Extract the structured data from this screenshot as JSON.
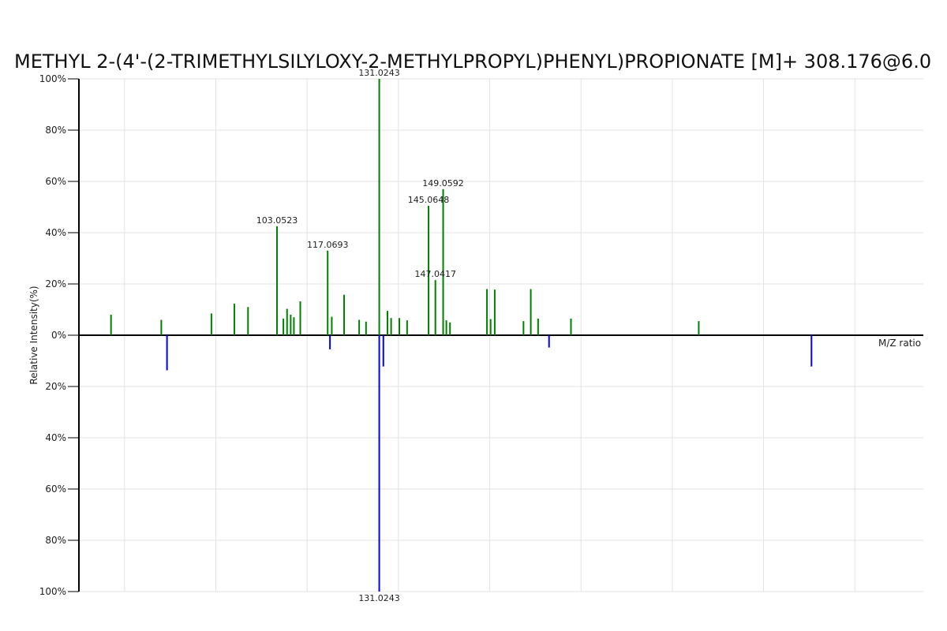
{
  "chart_data": {
    "type": "bar",
    "title": "METHYL 2-(4'-(2-TRIMETHYLSILYLOXY-2-METHYLPROPYL)PHENYL)PROPIONATE [M]+ 308.176@6.0",
    "xlabel": "M/Z ratio",
    "ylabel": "Relative Intensity(%)",
    "ylim": [
      -100,
      100
    ],
    "ytick_labels": [
      "100%",
      "80%",
      "60%",
      "40%",
      "20%",
      "0%",
      "20%",
      "40%",
      "60%",
      "80%",
      "100%"
    ],
    "grid": true,
    "series": [
      {
        "color": "#008000",
        "direction": "up",
        "points": [
          {
            "x": 62.03,
            "y": 8
          },
          {
            "x": 73.05,
            "y": 6
          },
          {
            "x": 84.03,
            "y": 8.5
          },
          {
            "x": 89.05,
            "y": 12.3
          },
          {
            "x": 92.05,
            "y": 11
          },
          {
            "x": 98.4,
            "y": 42.5,
            "label": "103.0523"
          },
          {
            "x": 99.8,
            "y": 6.5
          },
          {
            "x": 100.6,
            "y": 10.3
          },
          {
            "x": 101.4,
            "y": 8
          },
          {
            "x": 102.1,
            "y": 7
          },
          {
            "x": 103.5,
            "y": 13.2
          },
          {
            "x": 109.5,
            "y": 33,
            "label": "117.0693"
          },
          {
            "x": 110.4,
            "y": 7.2
          },
          {
            "x": 113.1,
            "y": 15.8
          },
          {
            "x": 116.4,
            "y": 6
          },
          {
            "x": 117.9,
            "y": 5.3
          },
          {
            "x": 120.8,
            "y": 100,
            "label": "131.0243"
          },
          {
            "x": 122.6,
            "y": 9.5
          },
          {
            "x": 123.4,
            "y": 6.7
          },
          {
            "x": 125.2,
            "y": 6.7
          },
          {
            "x": 126.9,
            "y": 5.8
          },
          {
            "x": 131.6,
            "y": 50.5,
            "label": "145.0648"
          },
          {
            "x": 133.1,
            "y": 21.5,
            "label": "147.0417"
          },
          {
            "x": 134.8,
            "y": 57,
            "label": "149.0592"
          },
          {
            "x": 135.5,
            "y": 5.8
          },
          {
            "x": 136.3,
            "y": 5
          },
          {
            "x": 144.4,
            "y": 18
          },
          {
            "x": 145.2,
            "y": 6.3
          },
          {
            "x": 146.1,
            "y": 17.8
          },
          {
            "x": 152.4,
            "y": 5.5
          },
          {
            "x": 154.0,
            "y": 18
          },
          {
            "x": 155.6,
            "y": 6.5
          },
          {
            "x": 162.8,
            "y": 6.5
          },
          {
            "x": 190.8,
            "y": 5.5
          }
        ]
      },
      {
        "color": "#0000ff",
        "direction": "down",
        "points": [
          {
            "x": 74.3,
            "y": 13.7
          },
          {
            "x": 110.0,
            "y": 5.5
          },
          {
            "x": 120.8,
            "y": 100,
            "label": "131.0243"
          },
          {
            "x": 121.7,
            "y": 12.2
          },
          {
            "x": 158.0,
            "y": 4.8
          },
          {
            "x": 215.5,
            "y": 12.2
          }
        ]
      }
    ]
  }
}
